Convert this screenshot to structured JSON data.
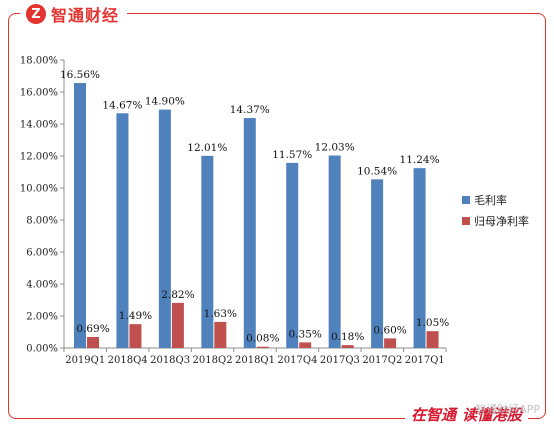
{
  "header": {
    "logo_mark": "Z",
    "brand": "智通财经"
  },
  "footer": {
    "slogan_a": "在智通",
    "slogan_b": "读懂港股",
    "watermark": "智通财经APP"
  },
  "colors": {
    "series1": "#4f81bd",
    "series2": "#c0504d",
    "accent": "#e3342f"
  },
  "chart_data": {
    "type": "bar",
    "categories": [
      "2019Q1",
      "2018Q4",
      "2018Q3",
      "2018Q2",
      "2018Q1",
      "2017Q4",
      "2017Q3",
      "2017Q2",
      "2017Q1"
    ],
    "series": [
      {
        "name": "毛利率",
        "values": [
          16.56,
          14.67,
          14.9,
          12.01,
          14.37,
          11.57,
          12.03,
          10.54,
          11.24
        ],
        "labels": [
          "16.56%",
          "14.67%",
          "14.90%",
          "12.01%",
          "14.37%",
          "11.57%",
          "12.03%",
          "10.54%",
          "11.24%"
        ]
      },
      {
        "name": "归母净利率",
        "values": [
          0.69,
          1.49,
          2.82,
          1.63,
          0.08,
          0.35,
          0.18,
          0.6,
          1.05
        ],
        "labels": [
          "0.69%",
          "1.49%",
          "2.82%",
          "1.63%",
          "0.08%",
          "0.35%",
          "0.18%",
          "0.60%",
          "1.05%"
        ]
      }
    ],
    "ylim": [
      0,
      18
    ],
    "yticks": [
      "0.00%",
      "2.00%",
      "4.00%",
      "6.00%",
      "8.00%",
      "10.00%",
      "12.00%",
      "14.00%",
      "16.00%",
      "18.00%"
    ],
    "grid": false,
    "legend_position": "right"
  }
}
